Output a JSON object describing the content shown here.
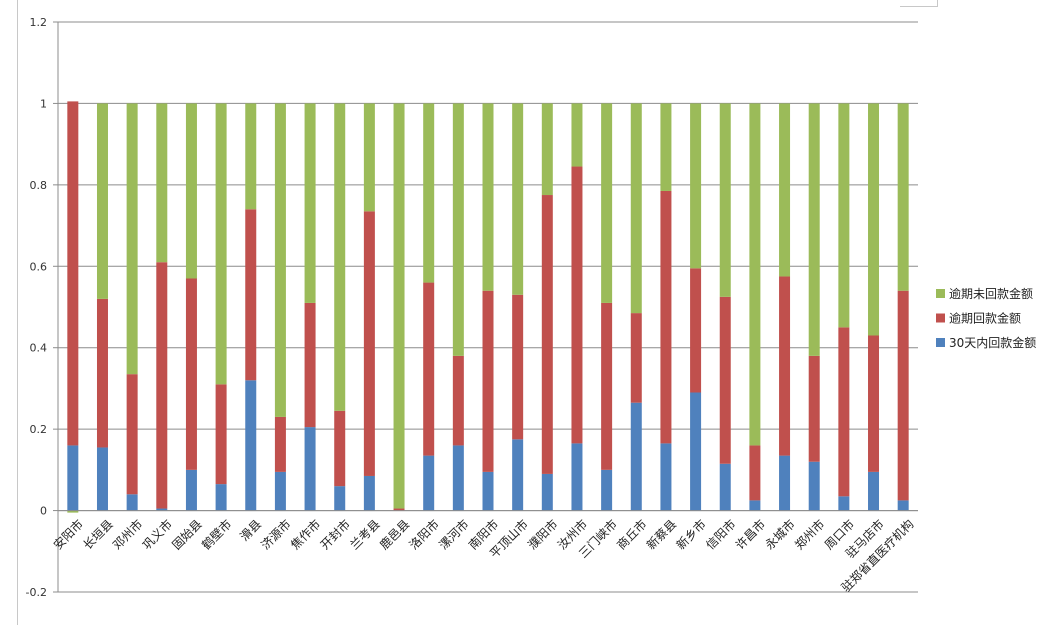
{
  "chart_data": {
    "type": "bar",
    "stacked": true,
    "title": "",
    "xlabel": "",
    "ylabel": "",
    "ylim": [
      -0.2,
      1.2
    ],
    "yticks": [
      "-0.2",
      "0",
      "0.2",
      "0.4",
      "0.6",
      "0.8",
      "1",
      "1.2"
    ],
    "grid": true,
    "legend_position": "right",
    "categories": [
      "安阳市",
      "长垣县",
      "邓州市",
      "巩义市",
      "固始县",
      "鹤壁市",
      "滑县",
      "济源市",
      "焦作市",
      "开封市",
      "兰考县",
      "鹿邑县",
      "洛阳市",
      "漯河市",
      "南阳市",
      "平顶山市",
      "濮阳市",
      "汝州市",
      "三门峡市",
      "商丘市",
      "新蔡县",
      "新乡市",
      "信阳市",
      "许昌市",
      "永城市",
      "郑州市",
      "周口市",
      "驻马店市",
      "驻郑省直医疗机构"
    ],
    "series": [
      {
        "name": "30天内回款金额",
        "color": "#4f81bd",
        "values": [
          0.16,
          0.155,
          0.04,
          0.005,
          0.1,
          0.065,
          0.32,
          0.095,
          0.205,
          0.06,
          0.085,
          0.0,
          0.135,
          0.16,
          0.095,
          0.175,
          0.09,
          0.165,
          0.1,
          0.265,
          0.165,
          0.29,
          0.115,
          0.025,
          0.135,
          0.12,
          0.035,
          0.095,
          0.025
        ]
      },
      {
        "name": "逾期回款金额",
        "color": "#c0504d",
        "values": [
          0.845,
          0.365,
          0.295,
          0.605,
          0.47,
          0.245,
          0.42,
          0.135,
          0.305,
          0.185,
          0.65,
          0.005,
          0.425,
          0.22,
          0.445,
          0.355,
          0.685,
          0.68,
          0.41,
          0.22,
          0.62,
          0.305,
          0.41,
          0.135,
          0.44,
          0.26,
          0.415,
          0.335,
          0.515
        ]
      },
      {
        "name": "逾期未回款金额",
        "color": "#9bbb59",
        "values": [
          -0.005,
          0.48,
          0.665,
          0.39,
          0.43,
          0.69,
          0.26,
          0.77,
          0.49,
          0.755,
          0.265,
          0.995,
          0.44,
          0.62,
          0.46,
          0.47,
          0.225,
          0.155,
          0.49,
          0.515,
          0.215,
          0.405,
          0.475,
          0.84,
          0.425,
          0.62,
          0.55,
          0.57,
          0.46
        ]
      }
    ],
    "legend_order": [
      "逾期未回款金额",
      "逾期回款金额",
      "30天内回款金额"
    ]
  }
}
